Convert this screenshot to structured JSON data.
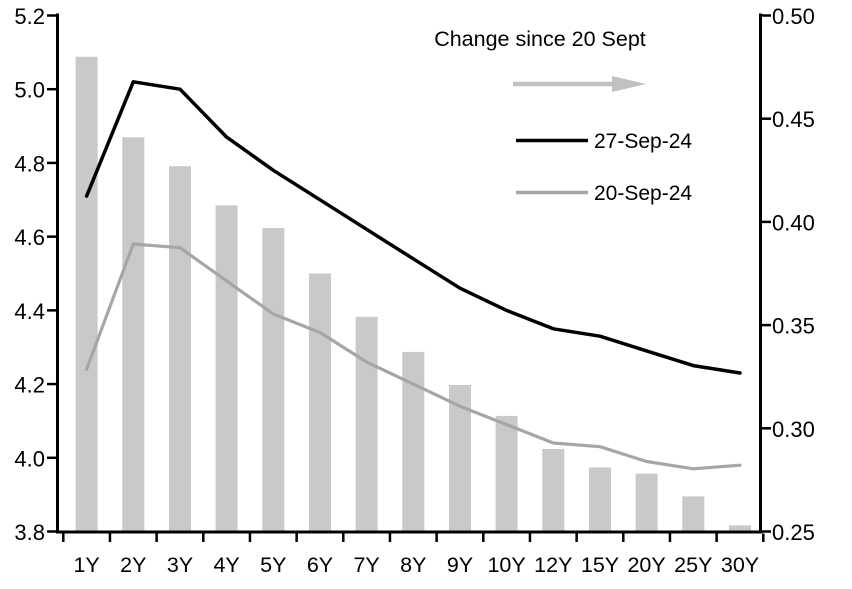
{
  "chart_data": {
    "type": "composite",
    "title": "",
    "categories": [
      "1Y",
      "2Y",
      "3Y",
      "4Y",
      "5Y",
      "6Y",
      "7Y",
      "8Y",
      "9Y",
      "10Y",
      "12Y",
      "15Y",
      "20Y",
      "25Y",
      "30Y"
    ],
    "series": [
      {
        "name": "Change since 20 Sept",
        "type": "bar",
        "axis": "right",
        "color": "#c9c9c9",
        "values": [
          0.48,
          0.441,
          0.427,
          0.408,
          0.397,
          0.375,
          0.354,
          0.337,
          0.321,
          0.306,
          0.29,
          0.281,
          0.278,
          0.267,
          0.253
        ]
      },
      {
        "name": "27-Sep-24",
        "type": "line",
        "axis": "left",
        "color": "#000000",
        "values": [
          4.71,
          5.02,
          5.0,
          4.87,
          4.78,
          4.7,
          4.62,
          4.54,
          4.46,
          4.4,
          4.35,
          4.33,
          4.29,
          4.25,
          4.23
        ]
      },
      {
        "name": "20-Sep-24",
        "type": "line",
        "axis": "left",
        "color": "#a6a6a6",
        "values": [
          4.24,
          4.58,
          4.57,
          4.48,
          4.39,
          4.34,
          4.26,
          4.2,
          4.14,
          4.09,
          4.04,
          4.03,
          3.99,
          3.97,
          3.98
        ]
      }
    ],
    "left_axis": {
      "min": 3.8,
      "max": 5.2,
      "tick_labels": [
        "5.2",
        "5.0",
        "4.8",
        "4.6",
        "4.4",
        "4.2",
        "4.0",
        "3.8"
      ]
    },
    "right_axis": {
      "min": 0.25,
      "max": 0.5,
      "tick_labels": [
        "0.50",
        "0.45",
        "0.40",
        "0.35",
        "0.30",
        "0.25"
      ]
    },
    "legend": {
      "title": "Change since 20 Sept",
      "arrow_color": "#c1c1c1",
      "entries": [
        {
          "label": "27-Sep-24",
          "color": "#000000"
        },
        {
          "label": "20-Sep-24",
          "color": "#a6a6a6"
        }
      ]
    },
    "grid": false,
    "legend_position": "top-center-inside",
    "colors": {
      "bar": "#c9c9c9",
      "line_current": "#000000",
      "line_previous": "#a6a6a6",
      "background": "#ffffff"
    }
  }
}
